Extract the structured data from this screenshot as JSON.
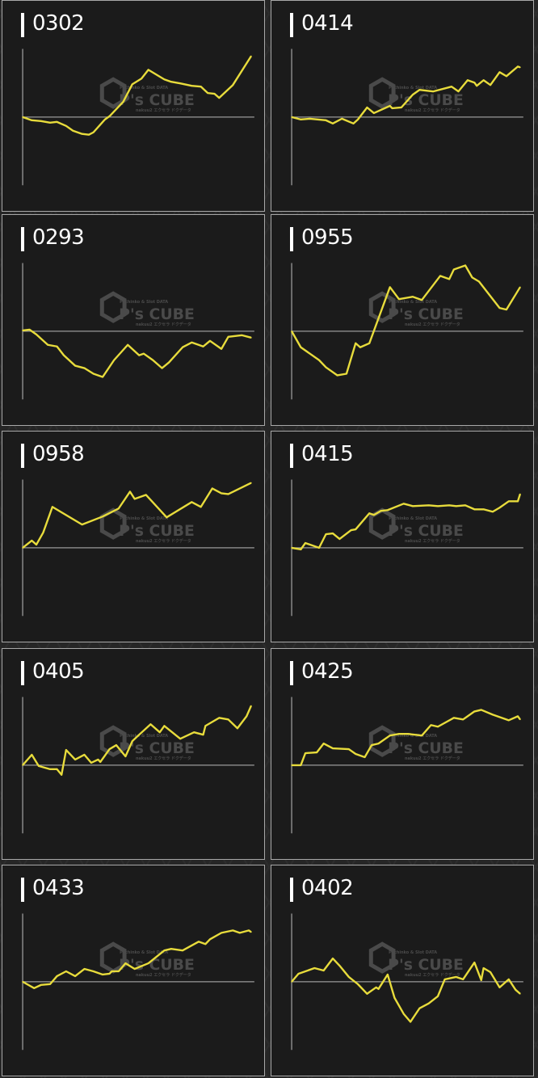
{
  "watermark": {
    "brand": "P's CUBE",
    "tagline_top": "Pachinko & Slot DATA",
    "tagline_bottom": "nakuu2 エクセラ ドクデータ"
  },
  "colors": {
    "line": "#e8dc3c",
    "axis": "#9a9a9a",
    "panel_bg": "#1b1b1b",
    "title": "#ffffff"
  },
  "chart_data": [
    {
      "type": "line",
      "title": "0302",
      "ylim": [
        -85,
        85
      ],
      "xlim": [
        0,
        100
      ],
      "grid": false,
      "x": [
        0,
        4,
        8,
        12,
        15,
        19,
        22,
        26,
        29,
        31,
        36,
        38,
        44,
        48,
        52,
        55,
        62,
        65,
        69,
        74,
        78,
        81,
        84,
        86,
        92,
        100
      ],
      "y": [
        0,
        -4,
        -5,
        -7,
        -6,
        -11,
        -17,
        -21,
        -22,
        -19,
        -3,
        1,
        19,
        41,
        48,
        59,
        47,
        44,
        42,
        39,
        38,
        30,
        29,
        24,
        40,
        76
      ]
    },
    {
      "type": "line",
      "title": "0414",
      "ylim": [
        -85,
        85
      ],
      "xlim": [
        0,
        100
      ],
      "grid": false,
      "x": [
        0,
        4,
        8,
        15,
        18,
        22,
        27,
        29,
        33,
        36,
        43,
        44,
        48,
        53,
        56,
        62,
        70,
        73,
        77,
        80,
        81,
        84,
        87,
        91,
        94,
        99,
        100
      ],
      "y": [
        0,
        -3,
        -2,
        -4,
        -8,
        -2,
        -8,
        -3,
        12,
        5,
        14,
        11,
        12,
        28,
        34,
        32,
        38,
        32,
        46,
        43,
        39,
        46,
        40,
        56,
        51,
        63,
        62
      ]
    },
    {
      "type": "line",
      "title": "0293",
      "ylim": [
        -85,
        85
      ],
      "xlim": [
        0,
        100
      ],
      "grid": false,
      "x": [
        0,
        3,
        6,
        11,
        15,
        18,
        23,
        27,
        31,
        35,
        40,
        46,
        51,
        53,
        57,
        61,
        64,
        70,
        74,
        79,
        82,
        87,
        90,
        96,
        100
      ],
      "y": [
        1,
        2,
        -4,
        -17,
        -19,
        -30,
        -43,
        -46,
        -53,
        -57,
        -36,
        -17,
        -30,
        -28,
        -36,
        -46,
        -39,
        -20,
        -14,
        -19,
        -12,
        -22,
        -7,
        -5,
        -8
      ]
    },
    {
      "type": "line",
      "title": "0955",
      "ylim": [
        -85,
        85
      ],
      "xlim": [
        0,
        100
      ],
      "grid": false,
      "x": [
        0,
        4,
        8,
        12,
        15,
        20,
        24,
        28,
        30,
        34,
        43,
        47,
        53,
        57,
        65,
        69,
        71,
        76,
        79,
        82,
        91,
        94,
        100
      ],
      "y": [
        0,
        -20,
        -28,
        -36,
        -45,
        -55,
        -53,
        -15,
        -20,
        -15,
        55,
        40,
        43,
        39,
        69,
        65,
        77,
        82,
        67,
        62,
        29,
        27,
        55
      ]
    },
    {
      "type": "line",
      "title": "0958",
      "ylim": [
        -85,
        85
      ],
      "xlim": [
        0,
        100
      ],
      "grid": false,
      "x": [
        0,
        4,
        6,
        9,
        13,
        26,
        35,
        42,
        47,
        49,
        54,
        63,
        74,
        78,
        83,
        87,
        90,
        100
      ],
      "y": [
        0,
        9,
        4,
        19,
        51,
        29,
        39,
        49,
        70,
        61,
        66,
        38,
        57,
        51,
        74,
        68,
        67,
        81
      ]
    },
    {
      "type": "line",
      "title": "0415",
      "ylim": [
        -85,
        85
      ],
      "xlim": [
        0,
        100
      ],
      "grid": false,
      "x": [
        0,
        4,
        6,
        12,
        15,
        18,
        21,
        26,
        28,
        34,
        36,
        39,
        42,
        49,
        53,
        60,
        64,
        69,
        72,
        76,
        80,
        84,
        88,
        91,
        95,
        99,
        100
      ],
      "y": [
        0,
        -2,
        6,
        0,
        17,
        18,
        11,
        22,
        23,
        43,
        41,
        46,
        47,
        55,
        52,
        53,
        52,
        53,
        52,
        53,
        48,
        48,
        45,
        50,
        58,
        58,
        67
      ]
    },
    {
      "type": "line",
      "title": "0405",
      "ylim": [
        -85,
        85
      ],
      "xlim": [
        0,
        100
      ],
      "grid": false,
      "x": [
        0,
        4,
        7,
        12,
        15,
        17,
        19,
        23,
        27,
        30,
        33,
        34,
        38,
        41,
        45,
        48,
        51,
        56,
        60,
        62,
        69,
        75,
        79,
        80,
        86,
        90,
        94,
        98,
        100
      ],
      "y": [
        0,
        13,
        -1,
        -5,
        -5,
        -12,
        19,
        7,
        13,
        3,
        7,
        4,
        20,
        25,
        11,
        30,
        38,
        51,
        41,
        49,
        33,
        41,
        38,
        49,
        59,
        57,
        46,
        61,
        74
      ]
    },
    {
      "type": "line",
      "title": "0425",
      "ylim": [
        -85,
        85
      ],
      "xlim": [
        0,
        100
      ],
      "grid": false,
      "x": [
        0,
        4,
        6,
        11,
        14,
        18,
        25,
        28,
        32,
        35,
        38,
        43,
        47,
        51,
        57,
        61,
        64,
        71,
        75,
        80,
        83,
        88,
        95,
        99,
        100
      ],
      "y": [
        0,
        0,
        15,
        16,
        27,
        21,
        20,
        14,
        10,
        25,
        27,
        37,
        39,
        39,
        37,
        50,
        48,
        59,
        57,
        67,
        69,
        63,
        56,
        61,
        57
      ]
    },
    {
      "type": "line",
      "title": "0433",
      "ylim": [
        -85,
        85
      ],
      "xlim": [
        0,
        100
      ],
      "grid": false,
      "x": [
        0,
        5,
        8,
        12,
        15,
        19,
        23,
        27,
        31,
        35,
        38,
        39,
        42,
        45,
        49,
        55,
        62,
        65,
        70,
        77,
        80,
        82,
        87,
        92,
        95,
        99,
        100
      ],
      "y": [
        0,
        -8,
        -4,
        -3,
        7,
        13,
        7,
        16,
        13,
        9,
        10,
        13,
        13,
        23,
        16,
        23,
        39,
        41,
        39,
        50,
        47,
        53,
        61,
        64,
        61,
        64,
        62
      ]
    },
    {
      "type": "line",
      "title": "0402",
      "ylim": [
        -85,
        85
      ],
      "xlim": [
        0,
        100
      ],
      "grid": false,
      "x": [
        0,
        3,
        10,
        14,
        18,
        21,
        25,
        29,
        33,
        37,
        38,
        42,
        45,
        49,
        52,
        56,
        60,
        64,
        67,
        72,
        75,
        80,
        83,
        84,
        87,
        91,
        95,
        98,
        100
      ],
      "y": [
        0,
        10,
        17,
        14,
        29,
        20,
        6,
        -3,
        -15,
        -7,
        -9,
        9,
        -20,
        -40,
        -50,
        -33,
        -27,
        -18,
        3,
        6,
        3,
        24,
        2,
        17,
        12,
        -7,
        3,
        -10,
        -15
      ]
    }
  ]
}
